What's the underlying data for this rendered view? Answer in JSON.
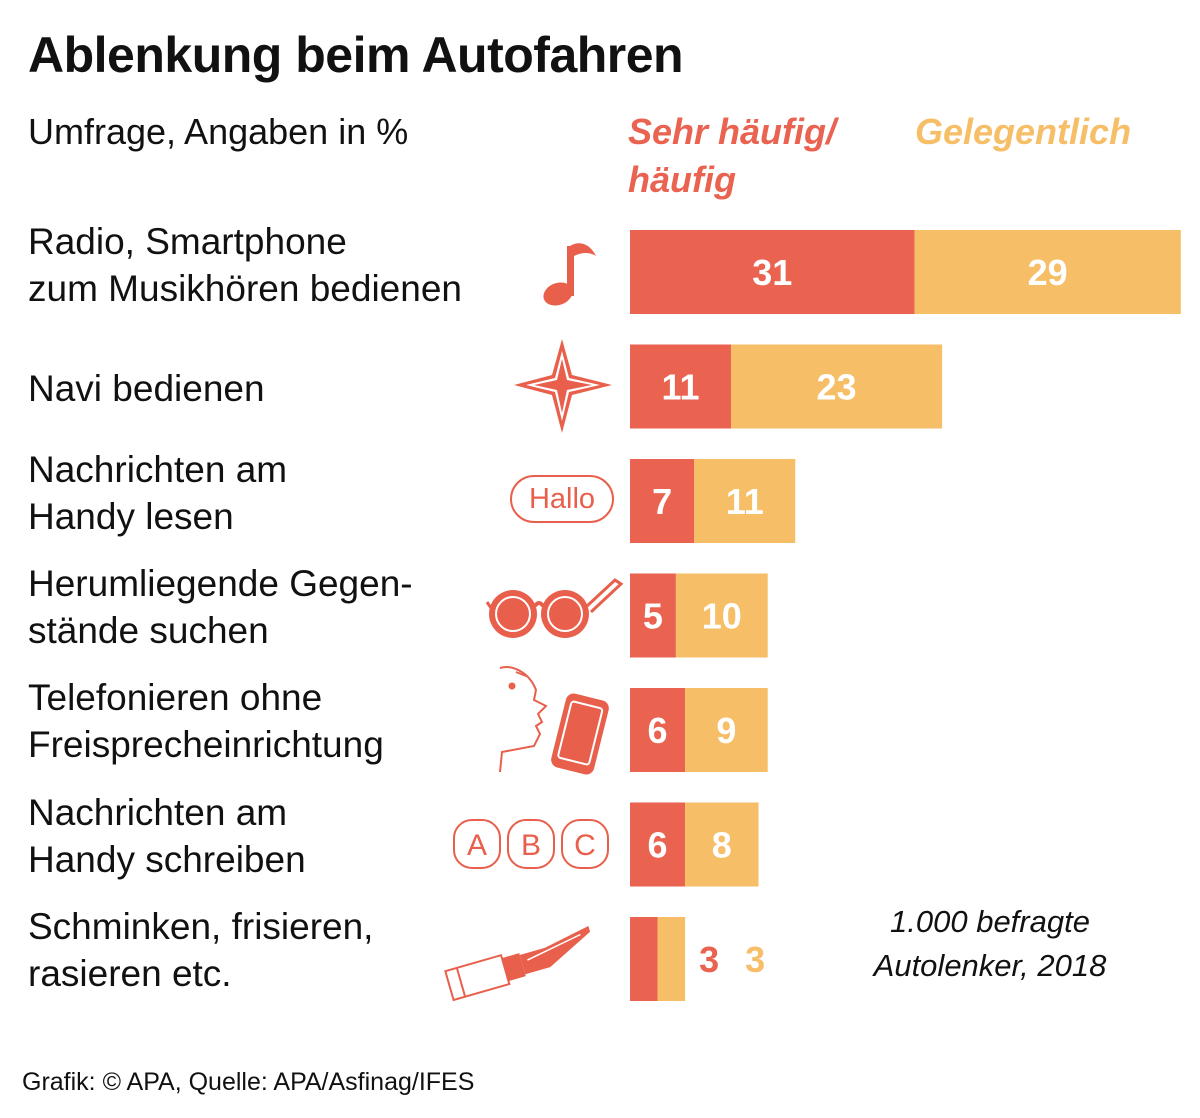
{
  "colors": {
    "frequent": "#EA6250",
    "occasional": "#F6BE67",
    "icon": "#E8604C",
    "text": "#111111"
  },
  "chart_data": {
    "type": "bar",
    "orientation": "horizontal",
    "stacked": true,
    "title": "Ablenkung beim Autofahren",
    "subtitle": "Umfrage, Angaben in %",
    "legend_position": "top-right",
    "categories": [
      [
        "Radio, Smartphone",
        "zum Musikhören bedienen"
      ],
      [
        "Navi bedienen"
      ],
      [
        "Nachrichten am",
        "Handy lesen"
      ],
      [
        "Herumliegende Gegen-",
        "stände suchen"
      ],
      [
        "Telefonieren ohne",
        "Freisprecheinrichtung"
      ],
      [
        "Nachrichten am",
        "Handy schreiben"
      ],
      [
        "Schminken, frisieren,",
        "rasieren etc."
      ]
    ],
    "icons": [
      "music-note-icon",
      "compass-star-icon",
      "hallo-bubble-icon",
      "sunglasses-icon",
      "head-phone-icon",
      "abc-letters-icon",
      "lipstick-icon"
    ],
    "series": [
      {
        "name": "Sehr häufig/ häufig",
        "name_lines": [
          "Sehr häufig/",
          "häufig"
        ],
        "values": [
          31,
          11,
          7,
          5,
          6,
          6,
          3
        ]
      },
      {
        "name": "Gelegentlich",
        "name_lines": [
          "Gelegentlich"
        ],
        "values": [
          29,
          23,
          11,
          10,
          9,
          8,
          3
        ]
      }
    ],
    "xlim": [
      0,
      60
    ],
    "grid": false,
    "note": [
      "1.000 befragte",
      "Autolenker, 2018"
    ]
  },
  "icon_labels": {
    "hallo": "Hallo",
    "letters": [
      "A",
      "B",
      "C"
    ]
  },
  "source": "Grafik: © APA, Quelle: APA/Asfinag/IFES"
}
